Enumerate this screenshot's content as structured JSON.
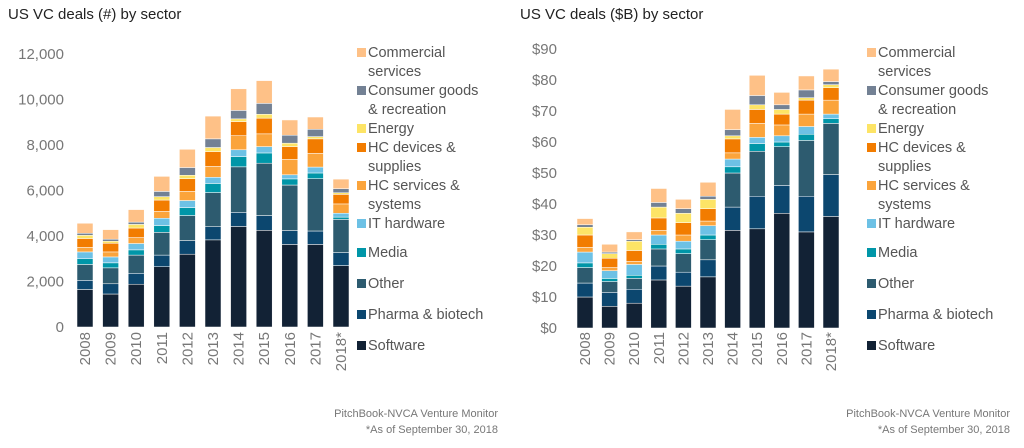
{
  "colors": {
    "Commercial services": "#fec187",
    "Consumer goods & recreation": "#738194",
    "Energy": "#fde466",
    "HC devices & supplies": "#f27c00",
    "HC services & systems": "#fba43b",
    "IT hardware": "#6dc1e5",
    "Media": "#0096a8",
    "Other": "#2d5b6f",
    "Pharma & biotech": "#0c476f",
    "Software": "#122235"
  },
  "chart_data": [
    {
      "type": "bar",
      "stacked": true,
      "title": "US VC deals (#) by sector",
      "xlabel": "",
      "ylabel": "",
      "ylim": [
        0,
        12000
      ],
      "yticks": [
        0,
        2000,
        4000,
        6000,
        8000,
        10000,
        12000
      ],
      "ytick_labels": [
        "0",
        "2,000",
        "4,000",
        "6,000",
        "8,000",
        "10,000",
        "12,000"
      ],
      "grid": false,
      "legend_position": "right",
      "categories": [
        "2008",
        "2009",
        "2010",
        "2011",
        "2012",
        "2013",
        "2014",
        "2015",
        "2016",
        "2017",
        "2018*"
      ],
      "series": [
        {
          "name": "Software",
          "values": [
            1650,
            1450,
            1880,
            2650,
            3200,
            3830,
            4420,
            4250,
            3630,
            3630,
            2700
          ]
        },
        {
          "name": "Pharma & biotech",
          "values": [
            400,
            450,
            480,
            510,
            600,
            580,
            620,
            650,
            610,
            590,
            580
          ]
        },
        {
          "name": "Other",
          "values": [
            700,
            700,
            800,
            1000,
            1100,
            1500,
            2000,
            2300,
            2000,
            2300,
            1450
          ]
        },
        {
          "name": "Media",
          "values": [
            250,
            220,
            230,
            300,
            350,
            400,
            450,
            450,
            270,
            250,
            100
          ]
        },
        {
          "name": "IT hardware",
          "values": [
            300,
            260,
            280,
            320,
            310,
            270,
            300,
            280,
            180,
            260,
            170
          ]
        },
        {
          "name": "HC services & systems",
          "values": [
            200,
            220,
            260,
            300,
            400,
            480,
            620,
            560,
            680,
            600,
            410
          ]
        },
        {
          "name": "HC devices & supplies",
          "values": [
            390,
            380,
            420,
            500,
            560,
            650,
            620,
            690,
            560,
            640,
            420
          ]
        },
        {
          "name": "Energy",
          "values": [
            140,
            90,
            160,
            150,
            150,
            180,
            120,
            170,
            150,
            100,
            70
          ]
        },
        {
          "name": "Consumer goods & recreation",
          "values": [
            90,
            90,
            100,
            230,
            340,
            380,
            370,
            480,
            350,
            320,
            180
          ]
        },
        {
          "name": "Commercial services",
          "values": [
            440,
            420,
            550,
            660,
            800,
            1000,
            950,
            1000,
            670,
            540,
            420
          ]
        }
      ]
    },
    {
      "type": "bar",
      "stacked": true,
      "title": "US VC deals ($B) by sector",
      "xlabel": "",
      "ylabel": "",
      "ylim": [
        0,
        90
      ],
      "yticks": [
        0,
        10,
        20,
        30,
        40,
        50,
        60,
        70,
        80,
        90
      ],
      "ytick_labels": [
        "$0",
        "$10",
        "$20",
        "$30",
        "$40",
        "$50",
        "$60",
        "$70",
        "$80",
        "$90"
      ],
      "grid": false,
      "legend_position": "right",
      "categories": [
        "2008",
        "2009",
        "2010",
        "2011",
        "2012",
        "2013",
        "2014",
        "2015",
        "2016",
        "2017",
        "2018*"
      ],
      "series": [
        {
          "name": "Software",
          "values": [
            10.0,
            7.0,
            8.0,
            15.5,
            13.5,
            16.5,
            31.5,
            32.0,
            37.0,
            31.0,
            36.0
          ]
        },
        {
          "name": "Pharma & biotech",
          "values": [
            4.5,
            4.5,
            4.5,
            4.5,
            4.5,
            5.5,
            7.5,
            10.5,
            9.0,
            11.5,
            13.5
          ]
        },
        {
          "name": "Other",
          "values": [
            5.0,
            3.5,
            3.5,
            5.5,
            6.0,
            6.5,
            11.0,
            14.5,
            12.5,
            18.0,
            16.5
          ]
        },
        {
          "name": "Media",
          "values": [
            1.5,
            1.0,
            1.0,
            1.5,
            1.5,
            1.5,
            2.0,
            2.5,
            1.5,
            2.0,
            1.5
          ]
        },
        {
          "name": "IT hardware",
          "values": [
            3.5,
            2.5,
            3.5,
            3.0,
            2.5,
            3.0,
            2.5,
            2.0,
            2.0,
            2.5,
            1.5
          ]
        },
        {
          "name": "HC services & systems",
          "values": [
            1.5,
            1.0,
            1.0,
            1.5,
            2.0,
            1.5,
            2.0,
            4.5,
            3.5,
            4.0,
            4.5
          ]
        },
        {
          "name": "HC devices & supplies",
          "values": [
            4.0,
            3.0,
            3.5,
            4.0,
            4.0,
            4.0,
            4.5,
            4.5,
            3.5,
            4.5,
            4.0
          ]
        },
        {
          "name": "Energy",
          "values": [
            2.5,
            1.5,
            3.0,
            3.5,
            3.0,
            3.0,
            1.0,
            1.5,
            1.5,
            0.8,
            1.0
          ]
        },
        {
          "name": "Consumer goods & recreation",
          "values": [
            0.8,
            0.5,
            0.5,
            1.5,
            1.5,
            1.0,
            2.0,
            3.0,
            1.5,
            2.5,
            1.0
          ]
        },
        {
          "name": "Commercial services",
          "values": [
            2.0,
            2.5,
            2.5,
            4.5,
            3.0,
            4.5,
            6.5,
            6.5,
            4.0,
            4.5,
            4.0
          ]
        }
      ]
    }
  ],
  "legend": {
    "items": [
      {
        "key": "Commercial services",
        "lines": [
          "Commercial",
          "services"
        ]
      },
      {
        "key": "Consumer goods & recreation",
        "lines": [
          "Consumer goods",
          "& recreation"
        ]
      },
      {
        "key": "Energy",
        "lines": [
          "Energy"
        ]
      },
      {
        "key": "HC devices & supplies",
        "lines": [
          "HC devices &",
          "supplies"
        ]
      },
      {
        "key": "HC services & systems",
        "lines": [
          "HC services &",
          "systems"
        ]
      },
      {
        "key": "IT hardware",
        "lines": [
          "IT hardware"
        ]
      },
      {
        "key": "Media",
        "lines": [
          "Media"
        ]
      },
      {
        "key": "Other",
        "lines": [
          "Other"
        ]
      },
      {
        "key": "Pharma & biotech",
        "lines": [
          "Pharma & biotech"
        ]
      },
      {
        "key": "Software",
        "lines": [
          "Software"
        ]
      }
    ]
  },
  "source": {
    "line1": "PitchBook-NVCA Venture Monitor",
    "line2": "*As of September 30, 2018"
  }
}
